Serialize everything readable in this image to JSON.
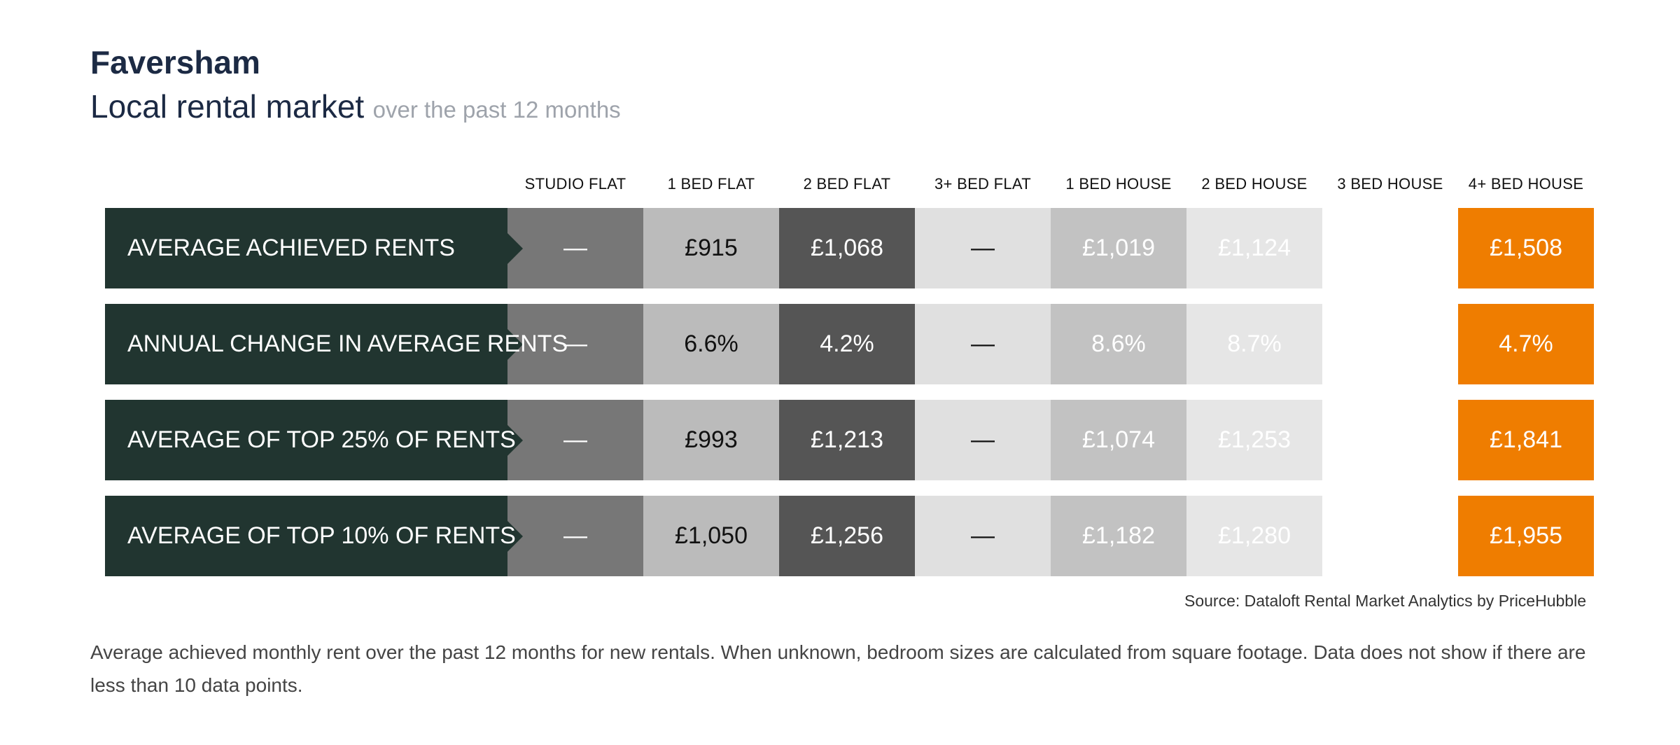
{
  "header": {
    "title": "Faversham",
    "subtitle": "Local rental market",
    "subtitle_suffix": "over the past 12 months"
  },
  "chart_data": {
    "type": "table",
    "columns": [
      "STUDIO FLAT",
      "1 BED FLAT",
      "2 BED FLAT",
      "3+ BED FLAT",
      "1 BED HOUSE",
      "2 BED HOUSE",
      "3 BED HOUSE",
      "4+ BED HOUSE"
    ],
    "column_colors": [
      "#777777",
      "#bbbbbb",
      "#555555",
      "#e0e0e0",
      "#c2c2c2",
      "#e6e6e6",
      "#ffffff",
      "#ef7d00"
    ],
    "column_text_colors": [
      "#ffffff",
      "#111111",
      "#ffffff",
      "#111111",
      "#ffffff",
      "#ffffff",
      "#ffffff",
      "#ffffff"
    ],
    "rows": [
      {
        "label": "AVERAGE ACHIEVED RENTS",
        "values": [
          "—",
          "£915",
          "£1,068",
          "—",
          "£1,019",
          "£1,124",
          "",
          "£1,508"
        ]
      },
      {
        "label": "ANNUAL CHANGE IN AVERAGE RENTS",
        "values": [
          "—",
          "6.6%",
          "4.2%",
          "—",
          "8.6%",
          "8.7%",
          "",
          "4.7%"
        ]
      },
      {
        "label": "AVERAGE OF TOP 25% OF RENTS",
        "values": [
          "—",
          "£993",
          "£1,213",
          "—",
          "£1,074",
          "£1,253",
          "",
          "£1,841"
        ]
      },
      {
        "label": "AVERAGE OF TOP 10% OF RENTS",
        "values": [
          "—",
          "£1,050",
          "£1,256",
          "—",
          "£1,182",
          "£1,280",
          "",
          "£1,955"
        ]
      }
    ]
  },
  "source": "Source: Dataloft Rental Market Analytics by PriceHubble",
  "footnote": "Average achieved monthly rent over the past 12 months for new rentals. When unknown, bedroom sizes are calculated from square footage. Data does not show if there are less than 10 data points."
}
